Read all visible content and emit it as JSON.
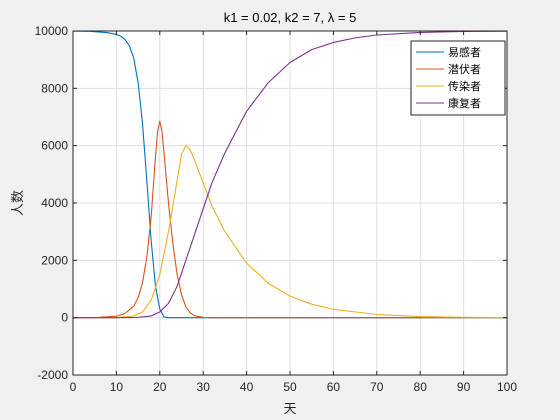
{
  "chart_data": {
    "type": "line",
    "title": "k1 = 0.02, k2 = 7, λ = 5",
    "xlabel": "天",
    "ylabel": "人数",
    "xlim": [
      0,
      100
    ],
    "ylim": [
      -2000,
      10000
    ],
    "xticks": [
      0,
      10,
      20,
      30,
      40,
      50,
      60,
      70,
      80,
      90,
      100
    ],
    "yticks": [
      -2000,
      0,
      2000,
      4000,
      6000,
      8000,
      10000
    ],
    "xtick_labels": [
      "0",
      "10",
      "20",
      "30",
      "40",
      "50",
      "60",
      "70",
      "80",
      "90",
      "100"
    ],
    "ytick_labels": [
      "-2000",
      "0",
      "2000",
      "4000",
      "6000",
      "8000",
      "10000"
    ],
    "grid": true,
    "legend_position": "top-right",
    "series": [
      {
        "name": "易感者",
        "color": "#0072bd",
        "x": [
          0,
          4,
          8,
          10,
          11,
          12,
          13,
          14,
          15,
          16,
          17,
          18,
          19,
          20,
          21,
          22,
          25,
          30,
          100
        ],
        "y": [
          9999,
          9990,
          9940,
          9880,
          9820,
          9700,
          9480,
          9050,
          8200,
          6800,
          4800,
          2700,
          1100,
          300,
          20,
          0,
          0,
          0,
          0
        ]
      },
      {
        "name": "潜伏者",
        "color": "#d95319",
        "x": [
          0,
          5,
          10,
          12,
          14,
          15,
          16,
          17,
          18,
          19,
          19.5,
          20,
          20.5,
          21,
          22,
          23,
          24,
          25,
          26,
          27,
          28,
          30,
          32,
          100
        ],
        "y": [
          0,
          0,
          50,
          150,
          400,
          700,
          1200,
          2100,
          3500,
          5600,
          6500,
          6850,
          6500,
          5700,
          4000,
          2600,
          1500,
          800,
          380,
          170,
          70,
          10,
          0,
          0
        ]
      },
      {
        "name": "传染者",
        "color": "#edb120",
        "x": [
          0,
          10,
          14,
          16,
          18,
          20,
          22,
          24,
          25,
          26,
          27,
          28,
          30,
          32,
          35,
          40,
          45,
          50,
          55,
          60,
          70,
          80,
          90,
          100
        ],
        "y": [
          0,
          0,
          60,
          200,
          600,
          1500,
          3000,
          4800,
          5700,
          6000,
          5850,
          5500,
          4700,
          3900,
          3000,
          1900,
          1200,
          750,
          470,
          290,
          110,
          40,
          15,
          5
        ]
      },
      {
        "name": "康复者",
        "color": "#7e2f8e",
        "x": [
          0,
          10,
          15,
          18,
          20,
          22,
          24,
          26,
          28,
          30,
          32,
          35,
          40,
          45,
          50,
          55,
          60,
          65,
          70,
          80,
          90,
          100
        ],
        "y": [
          0,
          0,
          10,
          60,
          200,
          500,
          1100,
          2000,
          2900,
          3800,
          4700,
          5750,
          7200,
          8200,
          8900,
          9350,
          9600,
          9760,
          9860,
          9950,
          9985,
          9995
        ]
      }
    ]
  }
}
